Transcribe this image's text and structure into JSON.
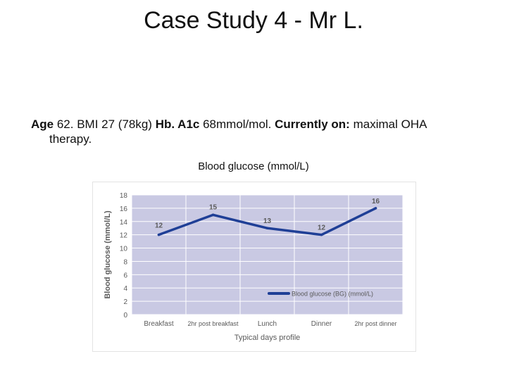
{
  "slide": {
    "title": "Case Study 4 -  Mr L."
  },
  "case": {
    "age_label": "Age",
    "age_text": " 62. BMI 27 (78kg) ",
    "hba1c_label": "Hb. A1c",
    "hba1c_text": " 68mmol/mol. ",
    "currently_label": "Currently on:",
    "currently_text": " maximal OHA",
    "line2_text": "therapy."
  },
  "caption": "Blood glucose (mmol/L)",
  "colors": {
    "plot_bg": "#c9c9e3",
    "line": "#1f3f96",
    "grid": "#ffffff",
    "axis_text": "#5a5a5a"
  },
  "chart_data": {
    "type": "line",
    "categories": [
      "Breakfast",
      "2hr post breakfast",
      "Lunch",
      "Dinner",
      "2hr post dinner"
    ],
    "series": [
      {
        "name": "Blood glucose (BG) (mmol/L)",
        "values": [
          12,
          15,
          13,
          12,
          16
        ]
      }
    ],
    "data_labels": [
      "12",
      "15",
      "13",
      "12",
      "16"
    ],
    "ylabel": "Blood glucose (mmol/L)",
    "xlabel": "Typical days profile",
    "ylim": [
      0,
      18
    ],
    "yticks": [
      "0",
      "2",
      "4",
      "6",
      "8",
      "10",
      "12",
      "14",
      "16",
      "18"
    ],
    "grid": true,
    "legend_position": "bottom-right"
  }
}
